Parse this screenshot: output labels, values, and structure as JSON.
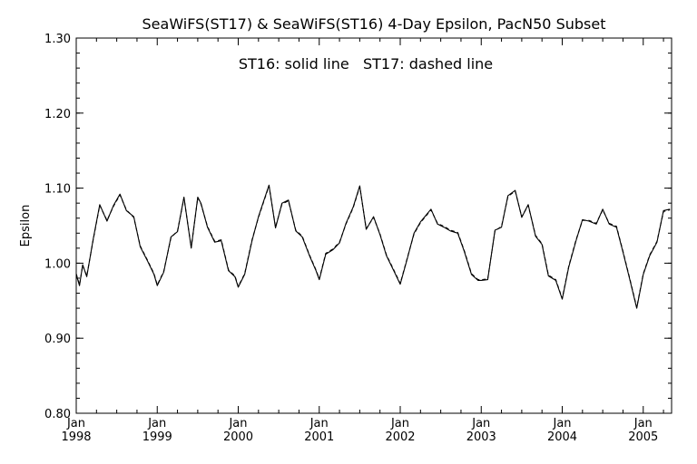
{
  "chart_data": {
    "type": "line",
    "title": "SeaWiFS(ST17) & SeaWiFS(ST16) 4-Day Epsilon, PacN50 Subset",
    "annotation": "ST16: solid line   ST17: dashed line",
    "ylabel": "Epsilon",
    "xlabel": "",
    "ylim": [
      0.8,
      1.3
    ],
    "xlim": [
      1998.0,
      2005.35
    ],
    "y_ticks": [
      {
        "value": 0.8,
        "label": "0.80"
      },
      {
        "value": 0.9,
        "label": "0.90"
      },
      {
        "value": 1.0,
        "label": "1.00"
      },
      {
        "value": 1.1,
        "label": "1.10"
      },
      {
        "value": 1.2,
        "label": "1.20"
      },
      {
        "value": 1.3,
        "label": "1.30"
      }
    ],
    "x_ticks": [
      {
        "value": 1998,
        "month": "Jan",
        "year": "1998"
      },
      {
        "value": 1999,
        "month": "Jan",
        "year": "1999"
      },
      {
        "value": 2000,
        "month": "Jan",
        "year": "2000"
      },
      {
        "value": 2001,
        "month": "Jan",
        "year": "2001"
      },
      {
        "value": 2002,
        "month": "Jan",
        "year": "2002"
      },
      {
        "value": 2003,
        "month": "Jan",
        "year": "2003"
      },
      {
        "value": 2004,
        "month": "Jan",
        "year": "2004"
      },
      {
        "value": 2005,
        "month": "Jan",
        "year": "2005"
      }
    ],
    "grid": false,
    "series": [
      {
        "name": "ST16",
        "style": "solid",
        "color": "#000000",
        "x": [
          1998.0,
          1998.04,
          1998.08,
          1998.13,
          1998.21,
          1998.29,
          1998.38,
          1998.46,
          1998.54,
          1998.62,
          1998.71,
          1998.79,
          1998.88,
          1998.96,
          1999.0,
          1999.08,
          1999.17,
          1999.25,
          1999.33,
          1999.42,
          1999.5,
          1999.54,
          1999.62,
          1999.71,
          1999.79,
          1999.88,
          1999.96,
          2000.0,
          2000.08,
          2000.17,
          2000.25,
          2000.38,
          2000.46,
          2000.54,
          2000.62,
          2000.71,
          2000.79,
          2000.88,
          2000.96,
          2001.0,
          2001.08,
          2001.17,
          2001.25,
          2001.33,
          2001.42,
          2001.5,
          2001.58,
          2001.67,
          2001.75,
          2001.83,
          2001.92,
          2002.0,
          2002.08,
          2002.17,
          2002.25,
          2002.38,
          2002.46,
          2002.54,
          2002.62,
          2002.71,
          2002.79,
          2002.88,
          2002.96,
          2003.0,
          2003.08,
          2003.17,
          2003.25,
          2003.33,
          2003.42,
          2003.5,
          2003.58,
          2003.67,
          2003.75,
          2003.83,
          2003.92,
          2004.0,
          2004.08,
          2004.17,
          2004.25,
          2004.33,
          2004.42,
          2004.5,
          2004.58,
          2004.67,
          2004.75,
          2004.83,
          2004.92,
          2005.0,
          2005.08,
          2005.17,
          2005.25,
          2005.33
        ],
        "y": [
          0.985,
          0.97,
          0.998,
          0.982,
          1.032,
          1.078,
          1.056,
          1.077,
          1.092,
          1.07,
          1.062,
          1.022,
          1.003,
          0.985,
          0.97,
          0.988,
          1.035,
          1.042,
          1.088,
          1.02,
          1.088,
          1.08,
          1.048,
          1.028,
          1.03,
          0.99,
          0.982,
          0.968,
          0.985,
          1.03,
          1.062,
          1.104,
          1.047,
          1.08,
          1.084,
          1.043,
          1.035,
          1.01,
          0.99,
          0.978,
          1.012,
          1.018,
          1.027,
          1.053,
          1.075,
          1.103,
          1.045,
          1.062,
          1.038,
          1.01,
          0.99,
          0.972,
          1.003,
          1.04,
          1.055,
          1.072,
          1.052,
          1.048,
          1.043,
          1.04,
          1.016,
          0.985,
          0.977,
          0.977,
          0.978,
          1.044,
          1.048,
          1.09,
          1.097,
          1.061,
          1.078,
          1.036,
          1.025,
          0.983,
          0.977,
          0.952,
          0.995,
          1.03,
          1.058,
          1.056,
          1.052,
          1.072,
          1.052,
          1.048,
          1.015,
          0.98,
          0.94,
          0.985,
          1.01,
          1.028,
          1.07,
          1.072
        ]
      },
      {
        "name": "ST17",
        "style": "dashed",
        "color": "#000000",
        "x": [
          1998.0,
          1998.04,
          1998.08,
          1998.13,
          1998.21,
          1998.29,
          1998.38,
          1998.46,
          1998.54,
          1998.62,
          1998.71,
          1998.79,
          1998.88,
          1998.96,
          1999.0,
          1999.08,
          1999.17,
          1999.25,
          1999.33,
          1999.42,
          1999.5,
          1999.54,
          1999.62,
          1999.71,
          1999.79,
          1999.88,
          1999.96,
          2000.0,
          2000.08,
          2000.17,
          2000.25,
          2000.38,
          2000.46,
          2000.54,
          2000.62,
          2000.71,
          2000.79,
          2000.88,
          2000.96,
          2001.0,
          2001.08,
          2001.17,
          2001.25,
          2001.33,
          2001.42,
          2001.5,
          2001.58,
          2001.67,
          2001.75,
          2001.83,
          2001.92,
          2002.0,
          2002.08,
          2002.17,
          2002.25,
          2002.38,
          2002.46,
          2002.54,
          2002.62,
          2002.71,
          2002.79,
          2002.88,
          2002.96,
          2003.0,
          2003.08,
          2003.17,
          2003.25,
          2003.33,
          2003.42,
          2003.5,
          2003.58,
          2003.67,
          2003.75,
          2003.83,
          2003.92,
          2004.0,
          2004.08,
          2004.17,
          2004.25,
          2004.33,
          2004.42,
          2004.5,
          2004.58,
          2004.67,
          2004.75,
          2004.83,
          2004.92,
          2005.0,
          2005.08,
          2005.17,
          2005.25,
          2005.33
        ],
        "y": [
          0.986,
          0.971,
          0.997,
          0.983,
          1.031,
          1.077,
          1.057,
          1.076,
          1.091,
          1.071,
          1.061,
          1.023,
          1.004,
          0.986,
          0.971,
          0.989,
          1.034,
          1.043,
          1.087,
          1.021,
          1.087,
          1.079,
          1.049,
          1.029,
          1.031,
          0.991,
          0.983,
          0.969,
          0.986,
          1.031,
          1.061,
          1.103,
          1.048,
          1.079,
          1.083,
          1.044,
          1.036,
          1.011,
          0.991,
          0.979,
          1.013,
          1.019,
          1.028,
          1.052,
          1.074,
          1.102,
          1.046,
          1.061,
          1.039,
          1.011,
          0.991,
          0.973,
          1.004,
          1.039,
          1.054,
          1.071,
          1.053,
          1.049,
          1.044,
          1.041,
          1.017,
          0.986,
          0.978,
          0.978,
          0.979,
          1.043,
          1.049,
          1.089,
          1.096,
          1.062,
          1.077,
          1.037,
          1.026,
          0.984,
          0.978,
          0.953,
          0.996,
          1.031,
          1.057,
          1.057,
          1.053,
          1.071,
          1.053,
          1.049,
          1.016,
          0.981,
          0.941,
          0.986,
          1.011,
          1.029,
          1.069,
          1.071
        ]
      }
    ]
  }
}
